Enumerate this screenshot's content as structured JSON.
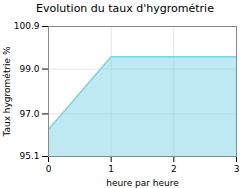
{
  "chart_data": {
    "type": "area",
    "title": "Evolution du taux d'hygrométrie",
    "xlabel": "heure par heure",
    "ylabel": "Taux hygrométrie %",
    "x": [
      0,
      1,
      3
    ],
    "y": [
      96.3,
      99.55,
      99.55
    ],
    "color": "#7dd4e8",
    "xlim": [
      0,
      3
    ],
    "ylim": [
      95.1,
      100.9
    ],
    "xticks": [
      0,
      1,
      2,
      3
    ],
    "yticks": [
      95.1,
      {
        "value": 97,
        "label": "97.0"
      },
      {
        "value": 99,
        "label": "99.0"
      },
      100.9
    ],
    "grid": true
  }
}
